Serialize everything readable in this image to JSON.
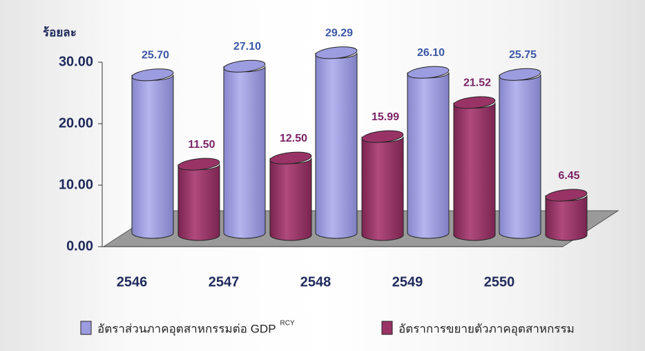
{
  "chart_data": {
    "type": "bar3d",
    "y_axis_label": "ร้อยละ",
    "categories": [
      "2546",
      "2547",
      "2548",
      "2549",
      "2550"
    ],
    "series": [
      {
        "name": "อัตราส่วนภาคอุตสาหกรรมต่อ GDP",
        "name_superscript": "RCY",
        "color": "#9c9ce0",
        "label_color": "#3b57a6",
        "values": [
          25.7,
          27.1,
          29.29,
          26.1,
          25.75
        ],
        "value_labels": [
          "25.70",
          "27.10",
          "29.29",
          "26.10",
          "25.75"
        ]
      },
      {
        "name": "อัตราการขยายตัวภาคอุตสาหกรรม",
        "color": "#993366",
        "label_color": "#7b2266",
        "values": [
          11.5,
          12.5,
          15.99,
          21.52,
          6.45
        ],
        "value_labels": [
          "11.50",
          "12.50",
          "15.99",
          "21.52",
          "6.45"
        ]
      }
    ],
    "ylim": [
      0,
      30
    ],
    "yticks": [
      {
        "value": 0,
        "label": "0.00"
      },
      {
        "value": 10,
        "label": "10.00"
      },
      {
        "value": 20,
        "label": "20.00"
      },
      {
        "value": 30,
        "label": "30.00"
      }
    ]
  }
}
